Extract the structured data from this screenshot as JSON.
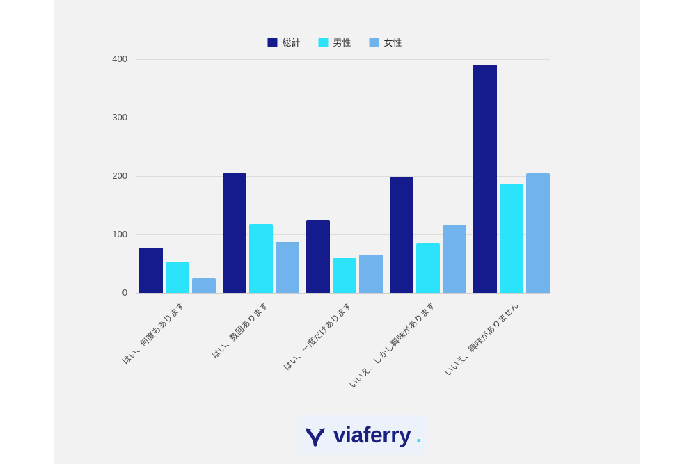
{
  "page": {
    "background": "#ffffff",
    "canvas_background": "#f2f2f3"
  },
  "legend": {
    "items": [
      {
        "label": "総計",
        "color": "#141b8d"
      },
      {
        "label": "男性",
        "color": "#2be4fb"
      },
      {
        "label": "女性",
        "color": "#71b3ec"
      }
    ]
  },
  "chart_data": {
    "type": "bar",
    "title": "",
    "xlabel": "",
    "ylabel": "",
    "categories": [
      "はい、何度もあります",
      "はい、数回あります",
      "はい、一度だけあります",
      "いいえ、しかし興味があります",
      "いいえ、興味がありません"
    ],
    "series": [
      {
        "name": "総計",
        "color": "#141b8d",
        "values": [
          77,
          205,
          125,
          199,
          391
        ]
      },
      {
        "name": "男性",
        "color": "#2be4fb",
        "values": [
          52,
          118,
          59,
          84,
          186
        ]
      },
      {
        "name": "女性",
        "color": "#71b3ec",
        "values": [
          25,
          87,
          66,
          115,
          205
        ]
      }
    ],
    "ylim": [
      0,
      400
    ],
    "yticks": [
      0,
      100,
      200,
      300,
      400
    ],
    "grid": true,
    "legend_position": "top",
    "xlabel_rotation_deg": 45
  },
  "footer": {
    "logo_text": "viaferry",
    "logo_dot": ".",
    "logo_icon": "branching-arrows-icon",
    "logo_text_color": "#1b1f7e",
    "logo_dot_color": "#35d6f0",
    "logo_background": "#edf1fa"
  }
}
